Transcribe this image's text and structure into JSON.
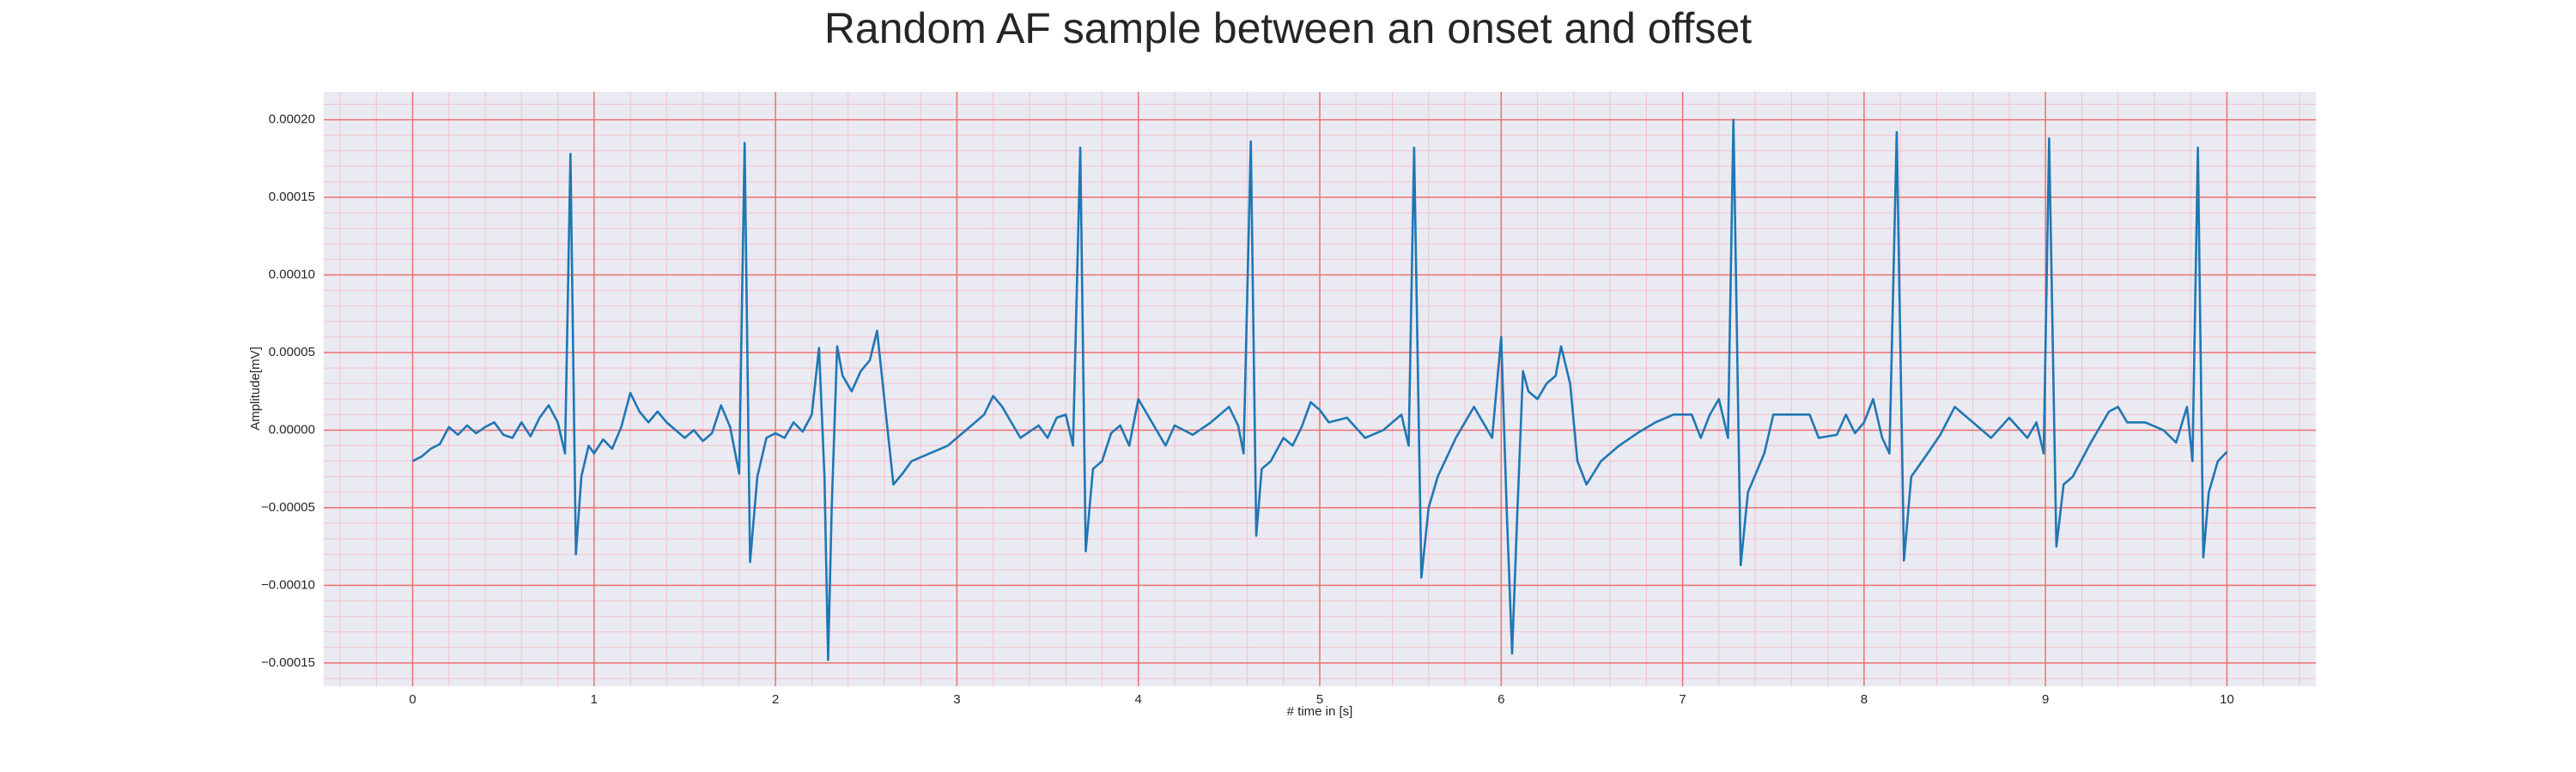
{
  "chart_data": {
    "type": "line",
    "title": "Random AF sample between an onset and offset",
    "xlabel": "# time in [s]",
    "ylabel": "Amplitude[mV]",
    "color": "#1f77b4",
    "grid": true,
    "minor_grid": true,
    "xlim": [
      -0.49,
      10.49
    ],
    "ylim": [
      -0.000165,
      0.000218
    ],
    "xticks": [
      0,
      1,
      2,
      3,
      4,
      5,
      6,
      7,
      8,
      9,
      10
    ],
    "yticks": [
      {
        "value": -0.00015,
        "label": "−0.00015"
      },
      {
        "value": -0.0001,
        "label": "−0.00010"
      },
      {
        "value": -5e-05,
        "label": "−0.00005"
      },
      {
        "value": 0,
        "label": "0.00000"
      },
      {
        "value": 5e-05,
        "label": "0.00005"
      },
      {
        "value": 0.0001,
        "label": "0.00010"
      },
      {
        "value": 0.00015,
        "label": "0.00015"
      },
      {
        "value": 0.0002,
        "label": "0.00020"
      }
    ],
    "x": [
      0,
      0.05,
      0.1,
      0.15,
      0.2,
      0.25,
      0.3,
      0.35,
      0.4,
      0.45,
      0.5,
      0.55,
      0.6,
      0.65,
      0.7,
      0.75,
      0.8,
      0.84,
      0.87,
      0.9,
      0.93,
      0.97,
      1.0,
      1.05,
      1.1,
      1.15,
      1.2,
      1.25,
      1.3,
      1.35,
      1.4,
      1.45,
      1.5,
      1.55,
      1.6,
      1.65,
      1.7,
      1.75,
      1.8,
      1.83,
      1.86,
      1.9,
      1.95,
      2.0,
      2.05,
      2.1,
      2.15,
      2.2,
      2.24,
      2.27,
      2.29,
      2.31,
      2.34,
      2.37,
      2.42,
      2.47,
      2.52,
      2.56,
      2.6,
      2.65,
      2.7,
      2.75,
      2.85,
      2.95,
      3.05,
      3.15,
      3.2,
      3.25,
      3.35,
      3.45,
      3.5,
      3.55,
      3.6,
      3.64,
      3.68,
      3.71,
      3.75,
      3.8,
      3.85,
      3.9,
      3.95,
      4.0,
      4.05,
      4.1,
      4.15,
      4.2,
      4.3,
      4.4,
      4.5,
      4.55,
      4.58,
      4.62,
      4.65,
      4.68,
      4.73,
      4.8,
      4.85,
      4.9,
      4.95,
      5.0,
      5.05,
      5.15,
      5.25,
      5.35,
      5.45,
      5.49,
      5.52,
      5.56,
      5.6,
      5.65,
      5.75,
      5.85,
      5.9,
      5.95,
      6.0,
      6.03,
      6.06,
      6.09,
      6.12,
      6.15,
      6.2,
      6.25,
      6.3,
      6.33,
      6.38,
      6.42,
      6.47,
      6.55,
      6.65,
      6.75,
      6.85,
      6.95,
      7.05,
      7.1,
      7.15,
      7.2,
      7.25,
      7.28,
      7.32,
      7.36,
      7.45,
      7.5,
      7.6,
      7.7,
      7.75,
      7.85,
      7.9,
      7.95,
      8.0,
      8.05,
      8.1,
      8.14,
      8.18,
      8.22,
      8.26,
      8.35,
      8.42,
      8.5,
      8.6,
      8.7,
      8.8,
      8.9,
      8.95,
      8.99,
      9.02,
      9.06,
      9.1,
      9.15,
      9.25,
      9.35,
      9.4,
      9.45,
      9.55,
      9.65,
      9.72,
      9.78,
      9.81,
      9.84,
      9.87,
      9.9,
      9.95,
      10.0
    ],
    "values": [
      -2e-05,
      -1.7e-05,
      -1.2e-05,
      -9e-06,
      2e-06,
      -3e-06,
      3e-06,
      -2e-06,
      2e-06,
      5e-06,
      -3e-06,
      -5e-06,
      5e-06,
      -4e-06,
      8e-06,
      1.6e-05,
      5e-06,
      -1.5e-05,
      0.000178,
      -8e-05,
      -3e-05,
      -1e-05,
      -1.5e-05,
      -6e-06,
      -1.2e-05,
      2e-06,
      2.4e-05,
      1.2e-05,
      5e-06,
      1.2e-05,
      5e-06,
      0,
      -5e-06,
      0,
      -7e-06,
      -2e-06,
      1.6e-05,
      2e-06,
      -2.8e-05,
      0.000185,
      -8.5e-05,
      -3e-05,
      -5e-06,
      -2e-06,
      -5e-06,
      5e-06,
      -1e-06,
      1e-05,
      5.3e-05,
      -3e-05,
      -0.000148,
      -5e-05,
      5.4e-05,
      3.5e-05,
      2.5e-05,
      3.8e-05,
      4.5e-05,
      6.4e-05,
      2e-05,
      -3.5e-05,
      -2.8e-05,
      -2e-05,
      -1.5e-05,
      -1e-05,
      0,
      1e-05,
      2.2e-05,
      1.5e-05,
      -5e-06,
      3e-06,
      -5e-06,
      8e-06,
      1e-05,
      -1e-05,
      0.000182,
      -7.8e-05,
      -2.5e-05,
      -2e-05,
      -2e-06,
      3e-06,
      -1e-05,
      2e-05,
      1e-05,
      0,
      -1e-05,
      3e-06,
      -3e-06,
      5e-06,
      1.5e-05,
      3e-06,
      -1.5e-05,
      0.000186,
      -6.8e-05,
      -2.5e-05,
      -2e-05,
      -5e-06,
      -1e-05,
      2e-06,
      1.8e-05,
      1.3e-05,
      5e-06,
      8e-06,
      -5e-06,
      0,
      1e-05,
      -1e-05,
      0.000182,
      -9.5e-05,
      -5e-05,
      -3e-05,
      -5e-06,
      1.5e-05,
      5e-06,
      -5e-06,
      6e-05,
      -5e-05,
      -0.000144,
      -5e-05,
      3.8e-05,
      2.5e-05,
      2e-05,
      3e-05,
      3.5e-05,
      5.4e-05,
      3e-05,
      -2e-05,
      -3.5e-05,
      -2e-05,
      -1e-05,
      -2e-06,
      5e-06,
      1e-05,
      1e-05,
      -5e-06,
      1e-05,
      2e-05,
      -5e-06,
      0.0002,
      -8.7e-05,
      -4e-05,
      -1.5e-05,
      1e-05,
      1e-05,
      1e-05,
      -5e-06,
      -3e-06,
      1e-05,
      -2e-06,
      5e-06,
      2e-05,
      -5e-06,
      -1.5e-05,
      0.000192,
      -8.4e-05,
      -3e-05,
      -1.5e-05,
      -3e-06,
      1.5e-05,
      5e-06,
      -5e-06,
      8e-06,
      -5e-06,
      5e-06,
      -1.5e-05,
      0.000188,
      -7.5e-05,
      -3.5e-05,
      -3e-05,
      -8e-06,
      1.2e-05,
      1.5e-05,
      5e-06,
      5e-06,
      0,
      -8e-06,
      1.5e-05,
      -2e-05,
      0.000182,
      -8.2e-05,
      -4e-05,
      -2e-05,
      -1.4e-05
    ]
  }
}
